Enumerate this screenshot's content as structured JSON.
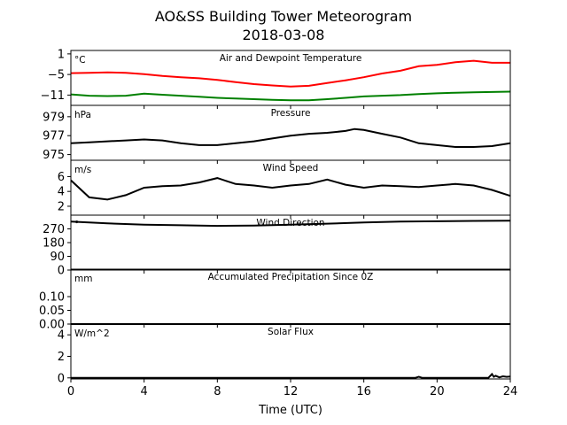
{
  "figure": {
    "title_line1": "AO&SS Building Tower Meteorogram",
    "title_line2": "2018-03-08",
    "xlabel": "Time (UTC)"
  },
  "chart_data": {
    "type": "line",
    "title": "AO&SS Building Tower Meteorogram 2018-03-08",
    "xlabel": "Time (UTC)",
    "xlim": [
      0,
      24
    ],
    "xticks": [
      0,
      4,
      8,
      12,
      16,
      20,
      24
    ],
    "grid": false,
    "panels": [
      {
        "name": "temperature",
        "title": "Air and Dewpoint Temperature",
        "unit": "°C",
        "ylim": [
          -14,
          2
        ],
        "yticks": [
          1,
          -5,
          -11
        ],
        "ytick_labels": [
          "1",
          "−5",
          "−11"
        ],
        "series": [
          {
            "color": "#ff0000",
            "x": [
              0,
              1,
              2,
              3,
              4,
              5,
              6,
              7,
              8,
              9,
              10,
              11,
              12,
              13,
              14,
              15,
              16,
              17,
              18,
              19,
              20,
              21,
              22,
              23,
              24
            ],
            "values": [
              -4.6,
              -4.5,
              -4.4,
              -4.5,
              -4.9,
              -5.4,
              -5.8,
              -6.1,
              -6.6,
              -7.2,
              -7.8,
              -8.2,
              -8.5,
              -8.3,
              -7.5,
              -6.7,
              -5.8,
              -4.7,
              -3.9,
              -2.6,
              -2.2,
              -1.4,
              -1.0,
              -1.6,
              -1.6
            ]
          },
          {
            "color": "#008000",
            "x": [
              0,
              1,
              2,
              3,
              4,
              5,
              6,
              7,
              8,
              9,
              10,
              11,
              12,
              13,
              14,
              15,
              16,
              17,
              18,
              19,
              20,
              21,
              22,
              23,
              24
            ],
            "values": [
              -10.8,
              -11.2,
              -11.3,
              -11.2,
              -10.6,
              -10.9,
              -11.2,
              -11.5,
              -11.8,
              -12.0,
              -12.2,
              -12.4,
              -12.5,
              -12.5,
              -12.2,
              -11.8,
              -11.4,
              -11.2,
              -11.0,
              -10.7,
              -10.5,
              -10.3,
              -10.2,
              -10.1,
              -10.0
            ]
          }
        ]
      },
      {
        "name": "pressure",
        "title": "Pressure",
        "unit": "hPa",
        "ylim": [
          974.4,
          980.2
        ],
        "yticks": [
          979,
          977,
          975
        ],
        "ytick_labels": [
          "979",
          "977",
          "975"
        ],
        "series": [
          {
            "color": "#000000",
            "x": [
              0,
              1,
              2,
              3,
              4,
              5,
              6,
              7,
              8,
              9,
              10,
              11,
              12,
              13,
              14,
              15,
              15.5,
              16,
              17,
              18,
              19,
              20,
              21,
              22,
              23,
              24
            ],
            "values": [
              976.2,
              976.3,
              976.4,
              976.5,
              976.6,
              976.5,
              976.2,
              976.0,
              976.0,
              976.2,
              976.4,
              976.7,
              977.0,
              977.2,
              977.3,
              977.5,
              977.7,
              977.6,
              977.2,
              976.8,
              976.2,
              976.0,
              975.8,
              975.8,
              975.9,
              976.2
            ]
          }
        ]
      },
      {
        "name": "wind_speed",
        "title": "Wind Speed",
        "unit": "m/s",
        "ylim": [
          0.8,
          8.2
        ],
        "yticks": [
          6,
          4,
          2
        ],
        "ytick_labels": [
          "6",
          "4",
          "2"
        ],
        "series": [
          {
            "color": "#000000",
            "x": [
              0,
              1,
              2,
              3,
              4,
              5,
              6,
              7,
              8,
              9,
              10,
              11,
              12,
              13,
              14,
              15,
              16,
              17,
              18,
              19,
              20,
              21,
              22,
              23,
              24
            ],
            "values": [
              5.5,
              3.2,
              2.9,
              3.5,
              4.5,
              4.7,
              4.8,
              5.2,
              5.8,
              5.0,
              4.8,
              4.5,
              4.8,
              5.0,
              5.6,
              4.9,
              4.5,
              4.8,
              4.7,
              4.6,
              4.8,
              5.0,
              4.8,
              4.2,
              3.4
            ]
          }
        ]
      },
      {
        "name": "wind_direction",
        "title": "Wind Direction",
        "unit": "°",
        "ylim": [
          0,
          360
        ],
        "yticks": [
          270,
          180,
          90,
          0
        ],
        "ytick_labels": [
          "270",
          "180",
          "90",
          "0"
        ],
        "series": [
          {
            "color": "#000000",
            "x": [
              0,
              2,
              4,
              6,
              8,
              10,
              12,
              14,
              16,
              18,
              20,
              22,
              24
            ],
            "values": [
              318,
              306,
              298,
              294,
              290,
              292,
              298,
              304,
              312,
              318,
              320,
              322,
              324
            ]
          }
        ]
      },
      {
        "name": "precipitation",
        "title": "Accumulated Precipitation Since 0Z",
        "unit": "mm",
        "ylim": [
          0,
          0.2
        ],
        "yticks": [
          0.1,
          0.05,
          0.0
        ],
        "ytick_labels": [
          "0.10",
          "0.05",
          "0.00"
        ],
        "series": [
          {
            "color": "#000000",
            "x": [
              0,
              24
            ],
            "values": [
              0,
              0
            ]
          }
        ]
      },
      {
        "name": "solar",
        "title": "Solar Flux",
        "unit": "W/m^2",
        "ylim": [
          -0.1,
          5.0
        ],
        "yticks": [
          4,
          2,
          0
        ],
        "ytick_labels": [
          "4",
          "2",
          "0"
        ],
        "series": [
          {
            "color": "#000000",
            "x": [
              0,
              18,
              18.8,
              19,
              19.2,
              22,
              22.8,
              23,
              23.1,
              23.2,
              23.4,
              23.6,
              23.8,
              24
            ],
            "values": [
              0,
              0,
              0,
              0.1,
              0,
              0,
              0,
              0.35,
              0.1,
              0.2,
              0.05,
              0.15,
              0.1,
              0.12
            ]
          }
        ]
      }
    ]
  }
}
